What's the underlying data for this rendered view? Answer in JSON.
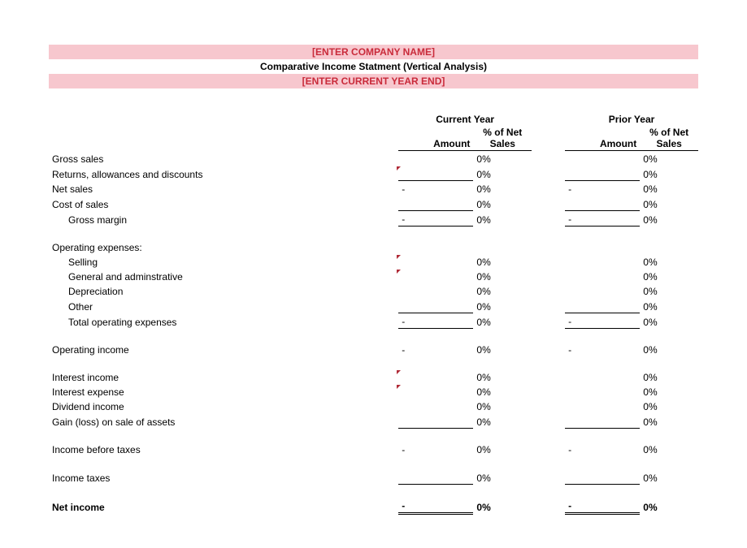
{
  "header": {
    "company": "[ENTER COMPANY NAME]",
    "title": "Comparative Income Statment (Vertical Analysis)",
    "yearend": "[ENTER CURRENT YEAR END]"
  },
  "cols": {
    "cur": "Current Year",
    "pri": "Prior Year",
    "amt": "Amount",
    "pct": "% of Net Sales"
  },
  "labels": {
    "gross_sales": "Gross sales",
    "returns": "Returns, allowances and discounts",
    "net_sales": "Net sales",
    "cogs": "Cost of sales",
    "gross_margin": "Gross margin",
    "opex_hdr": "Operating expenses:",
    "selling": "Selling",
    "ga": "General and adminstrative",
    "dep": "Depreciation",
    "other": "Other",
    "opex_total": "Total operating expenses",
    "op_income": "Operating income",
    "int_income": "Interest income",
    "int_expense": "Interest expense",
    "div_income": "Dividend income",
    "gain_loss": "Gain (loss) on sale of assets",
    "ibt": "Income before taxes",
    "taxes": "Income taxes",
    "net_income": "Net income"
  },
  "vals": {
    "dash": "-",
    "blank": "",
    "pct0": "0%"
  }
}
